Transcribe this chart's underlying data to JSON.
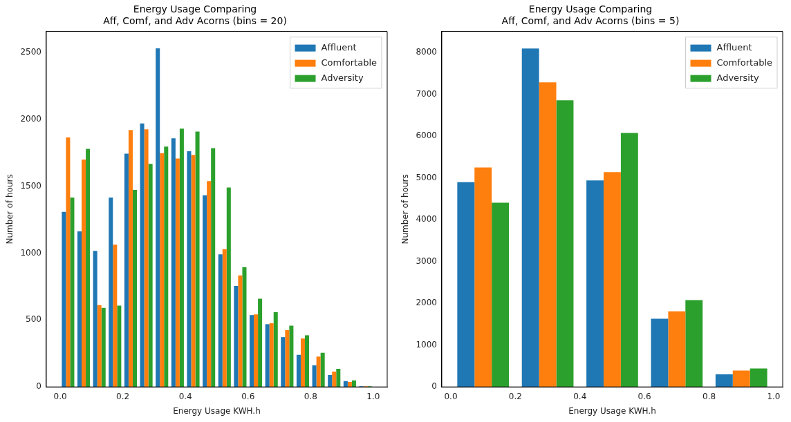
{
  "chart_data": [
    {
      "type": "histogram",
      "title": "Energy Usage Comparing\nAff, Comf, and Adv Acorns (bins = 20)",
      "xlabel": "Energy Usage KWH.h",
      "ylabel": "Number of hours",
      "bins": [
        0,
        0.05,
        0.1,
        0.15,
        0.2,
        0.25,
        0.3,
        0.35,
        0.4,
        0.45,
        0.5,
        0.55,
        0.6,
        0.65,
        0.7,
        0.75,
        0.8,
        0.85,
        0.9,
        0.95,
        1.0
      ],
      "series": [
        {
          "name": "Affluent",
          "color": "#1f77b4",
          "values": [
            1308,
            1163,
            1017,
            1416,
            1743,
            1970,
            2531,
            1858,
            1762,
            1432,
            991,
            755,
            537,
            469,
            372,
            240,
            161,
            89,
            44,
            5
          ]
        },
        {
          "name": "Comfortable",
          "color": "#ff7f0e",
          "values": [
            1865,
            1700,
            612,
            1063,
            1920,
            1925,
            1747,
            1708,
            1734,
            1538,
            1030,
            834,
            542,
            476,
            425,
            362,
            227,
            115,
            37,
            5
          ]
        },
        {
          "name": "Adversity",
          "color": "#2ca02c",
          "values": [
            1416,
            1780,
            591,
            608,
            1472,
            1668,
            1797,
            1931,
            1909,
            1785,
            1490,
            895,
            659,
            559,
            458,
            386,
            255,
            135,
            49,
            5
          ]
        }
      ],
      "xlim": [
        -0.0445,
        1.0445
      ],
      "xticks": [
        {
          "value": 0,
          "label": "0.0"
        },
        {
          "value": 0.2,
          "label": "0.2"
        },
        {
          "value": 0.4,
          "label": "0.4"
        },
        {
          "value": 0.6,
          "label": "0.6"
        },
        {
          "value": 0.8,
          "label": "0.8"
        },
        {
          "value": 1,
          "label": "1.0"
        }
      ],
      "ylim": [
        0,
        2657
      ],
      "yticks": [
        0,
        500,
        1000,
        1500,
        2000,
        2500
      ],
      "legend": "top right"
    },
    {
      "type": "histogram",
      "title": "Energy Usage Comparing\nAff, Comf, and Adv Acorns (bins = 5)",
      "xlabel": "Energy Usage KWH.h",
      "ylabel": "Number of hours",
      "bins": [
        0,
        0.2,
        0.4,
        0.6,
        0.8,
        1.0
      ],
      "series": [
        {
          "name": "Affluent",
          "color": "#1f77b4",
          "values": [
            4900,
            8100,
            4940,
            1630,
            300
          ]
        },
        {
          "name": "Comfortable",
          "color": "#ff7f0e",
          "values": [
            5250,
            7290,
            5140,
            1810,
            390
          ]
        },
        {
          "name": "Adversity",
          "color": "#2ca02c",
          "values": [
            4410,
            6860,
            6080,
            2080,
            440
          ]
        }
      ],
      "xlim": [
        -0.028,
        1.028
      ],
      "xticks": [
        {
          "value": 0,
          "label": "0.0"
        },
        {
          "value": 0.2,
          "label": "0.2"
        },
        {
          "value": 0.4,
          "label": "0.4"
        },
        {
          "value": 0.6,
          "label": "0.6"
        },
        {
          "value": 0.8,
          "label": "0.8"
        },
        {
          "value": 1,
          "label": "1.0"
        }
      ],
      "ylim": [
        0,
        8507
      ],
      "yticks": [
        0,
        1000,
        2000,
        3000,
        4000,
        5000,
        6000,
        7000,
        8000
      ],
      "legend": "top right"
    }
  ]
}
